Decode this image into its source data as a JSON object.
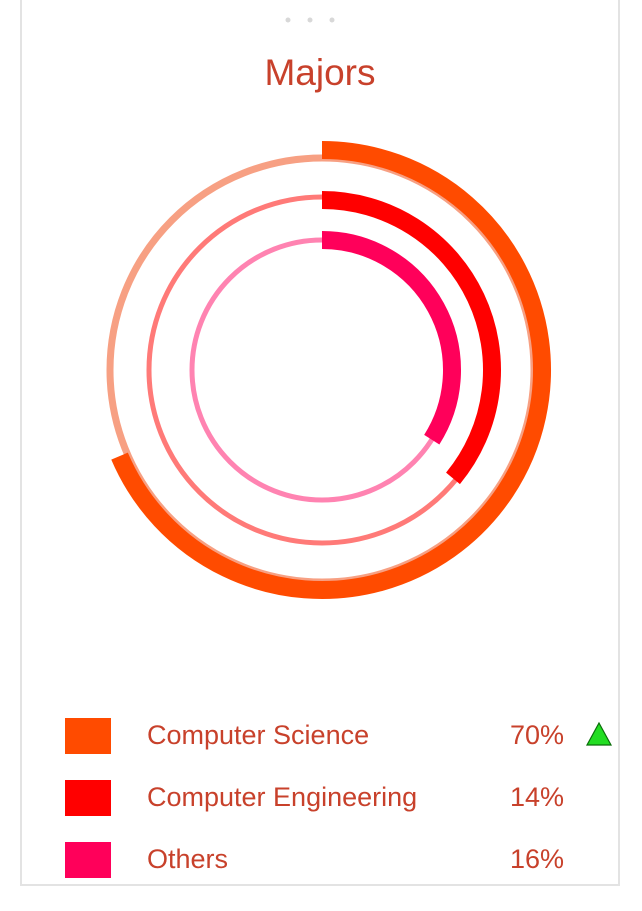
{
  "chart_data": {
    "type": "radial-bar",
    "title": "Majors",
    "series": [
      {
        "name": "Computer Science",
        "label": "70%",
        "value": 70,
        "color": "#ff4b00",
        "track_color": "#f7a083",
        "trend": "up"
      },
      {
        "name": "Computer Engineering",
        "label": "14%",
        "value": 14,
        "color": "#ff0000",
        "track_color": "#ff7a78",
        "trend": null
      },
      {
        "name": "Others",
        "label": "16%",
        "value": 16,
        "color": "#ff005a",
        "track_color": "#ff83b1",
        "trend": null
      }
    ]
  },
  "colors": {
    "title": "#c8412b",
    "text": "#c8412b",
    "trend_up": "#22dd22",
    "border": "#e3e3e3"
  },
  "icons": {
    "trend_up": "triangle-up-icon"
  }
}
